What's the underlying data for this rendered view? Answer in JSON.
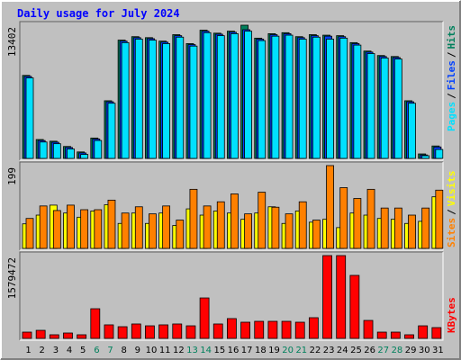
{
  "title": "Daily usage for July 2024",
  "legend_separator": "/",
  "chart_data": [
    {
      "type": "bar",
      "ylim": [
        0,
        13402
      ],
      "yticks": [
        13402
      ],
      "series": [
        {
          "name": "Hits",
          "color": "#00805c",
          "values": [
            8350,
            1900,
            1730,
            1200,
            650,
            2050,
            5800,
            11900,
            12250,
            12150,
            11800,
            12450,
            11550,
            12900,
            12600,
            12800,
            13402,
            12100,
            12550,
            12650,
            12250,
            12450,
            12400,
            12350,
            11650,
            10800,
            10350,
            10250,
            5800,
            450,
            1250
          ]
        },
        {
          "name": "Files",
          "color": "#0040ff",
          "values": [
            8250,
            1800,
            1630,
            1100,
            550,
            1950,
            5700,
            11800,
            12150,
            12050,
            11700,
            12350,
            11450,
            12800,
            12500,
            12700,
            12950,
            12000,
            12450,
            12550,
            12150,
            12350,
            12300,
            12250,
            11550,
            10700,
            10250,
            10150,
            5700,
            350,
            1150
          ]
        },
        {
          "name": "Pages",
          "color": "#00e0ff",
          "values": [
            8100,
            1650,
            1480,
            950,
            400,
            1800,
            5550,
            11650,
            12000,
            11900,
            11550,
            12200,
            11300,
            12650,
            12350,
            12550,
            12800,
            11850,
            12300,
            12400,
            12000,
            12200,
            12000,
            12100,
            11400,
            10550,
            10100,
            10000,
            5550,
            270,
            900
          ]
        }
      ]
    },
    {
      "type": "bar",
      "ylim": [
        0,
        199
      ],
      "yticks": [
        199
      ],
      "series": [
        {
          "name": "Visits",
          "color": "#ffff00",
          "values": [
            59,
            80,
            104,
            85,
            75,
            90,
            105,
            60,
            85,
            60,
            85,
            55,
            95,
            80,
            90,
            85,
            70,
            85,
            100,
            60,
            90,
            63,
            70,
            50,
            85,
            80,
            72,
            70,
            60,
            65,
            124
          ]
        },
        {
          "name": "Sites",
          "color": "#ff8000",
          "values": [
            72,
            102,
            91,
            104,
            93,
            93,
            116,
            85,
            100,
            83,
            102,
            68,
            142,
            102,
            112,
            131,
            83,
            135,
            99,
            83,
            112,
            68,
            199,
            146,
            120,
            142,
            97,
            97,
            80,
            97,
            140
          ]
        }
      ]
    },
    {
      "type": "bar",
      "ylim": [
        0,
        1579472
      ],
      "yticks": [
        1579472
      ],
      "categories": [
        "1",
        "2",
        "3",
        "4",
        "5",
        "6",
        "7",
        "8",
        "9",
        "10",
        "11",
        "12",
        "13",
        "14",
        "15",
        "16",
        "17",
        "18",
        "19",
        "20",
        "21",
        "22",
        "23",
        "24",
        "25",
        "26",
        "27",
        "28",
        "29",
        "30",
        "31"
      ],
      "category_colors": [
        "#000000",
        "#000000",
        "#000000",
        "#000000",
        "#000000",
        "#00805c",
        "#00805c",
        "#000000",
        "#000000",
        "#000000",
        "#000000",
        "#000000",
        "#00805c",
        "#00805c",
        "#000000",
        "#000000",
        "#000000",
        "#000000",
        "#000000",
        "#00805c",
        "#00805c",
        "#000000",
        "#000000",
        "#000000",
        "#000000",
        "#000000",
        "#00805c",
        "#00805c",
        "#000000",
        "#000000",
        "#000000"
      ],
      "series": [
        {
          "name": "KBytes",
          "color": "#ff0000",
          "values": [
            120000,
            154000,
            69000,
            103000,
            69000,
            566000,
            258000,
            223000,
            275000,
            240000,
            258000,
            275000,
            240000,
            772000,
            275000,
            378000,
            309000,
            326000,
            326000,
            326000,
            309000,
            395000,
            1579472,
            1579472,
            1202000,
            343000,
            120000,
            120000,
            69000,
            240000,
            206000
          ]
        }
      ]
    }
  ]
}
